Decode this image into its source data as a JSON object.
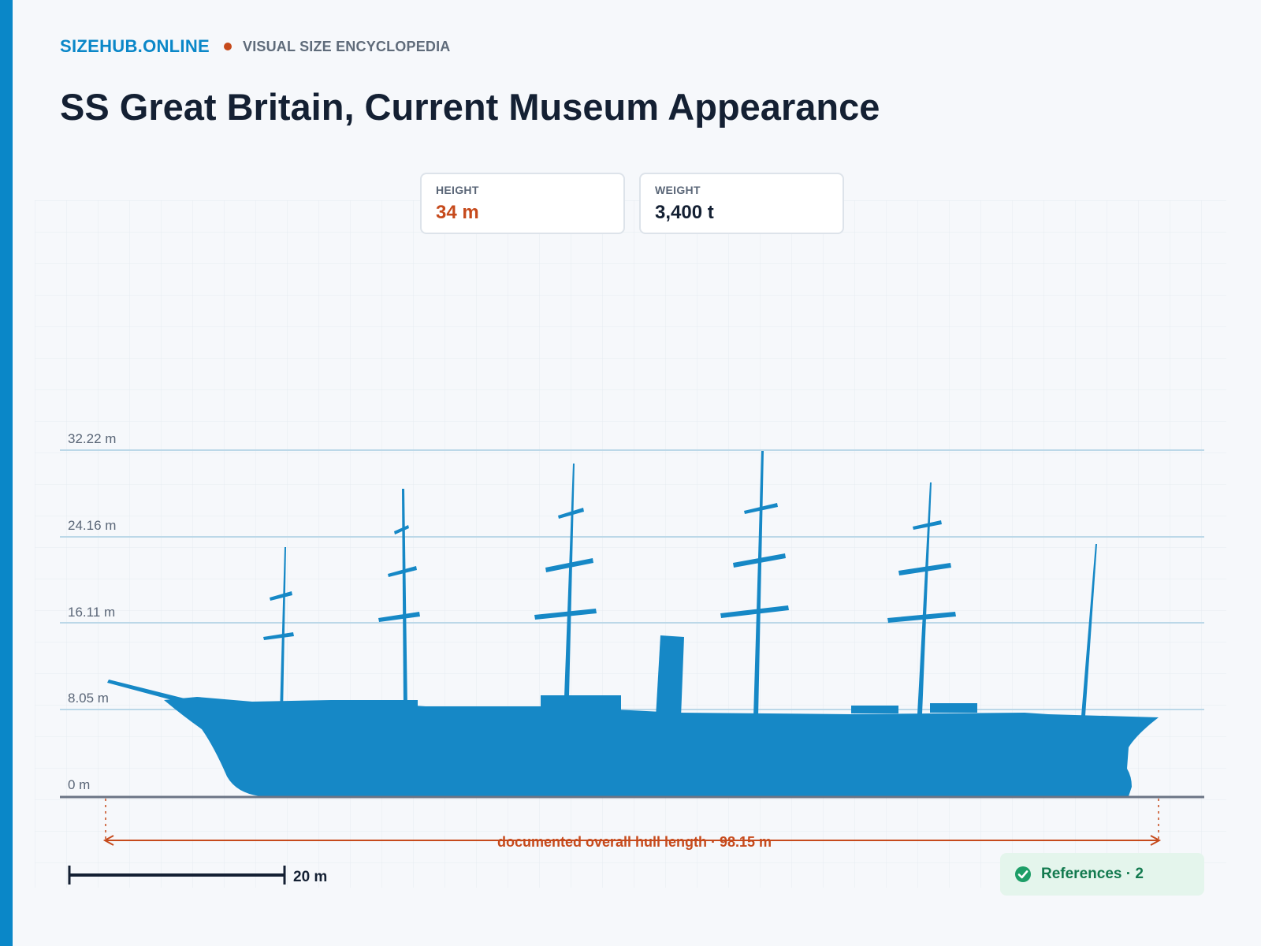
{
  "brand": "SIZEHUB.ONLINE",
  "tagline": "VISUAL SIZE ENCYCLOPEDIA",
  "title": "SS Great Britain, Current Museum Appearance",
  "stats": {
    "height": {
      "label": "HEIGHT",
      "value": "34 m"
    },
    "weight": {
      "label": "WEIGHT",
      "value": "3,400 t"
    }
  },
  "colors": {
    "accent": "#0a87c8",
    "silhouette": "#1688c6",
    "measure": "#c64a1c",
    "ink": "#142033",
    "success": "#1d9e67"
  },
  "scale_ticks": [
    {
      "value": 0,
      "label": "0 m"
    },
    {
      "value": 8.05,
      "label": "8.05 m"
    },
    {
      "value": 16.11,
      "label": "16.11 m"
    },
    {
      "value": 24.16,
      "label": "24.16 m"
    },
    {
      "value": 32.22,
      "label": "32.22 m"
    }
  ],
  "length_annotation": "documented overall hull length · 98.15 m",
  "scale_bar": {
    "value": 20,
    "label": "20 m"
  },
  "references": {
    "label": "References · 2",
    "icon": "check-circle-icon"
  }
}
